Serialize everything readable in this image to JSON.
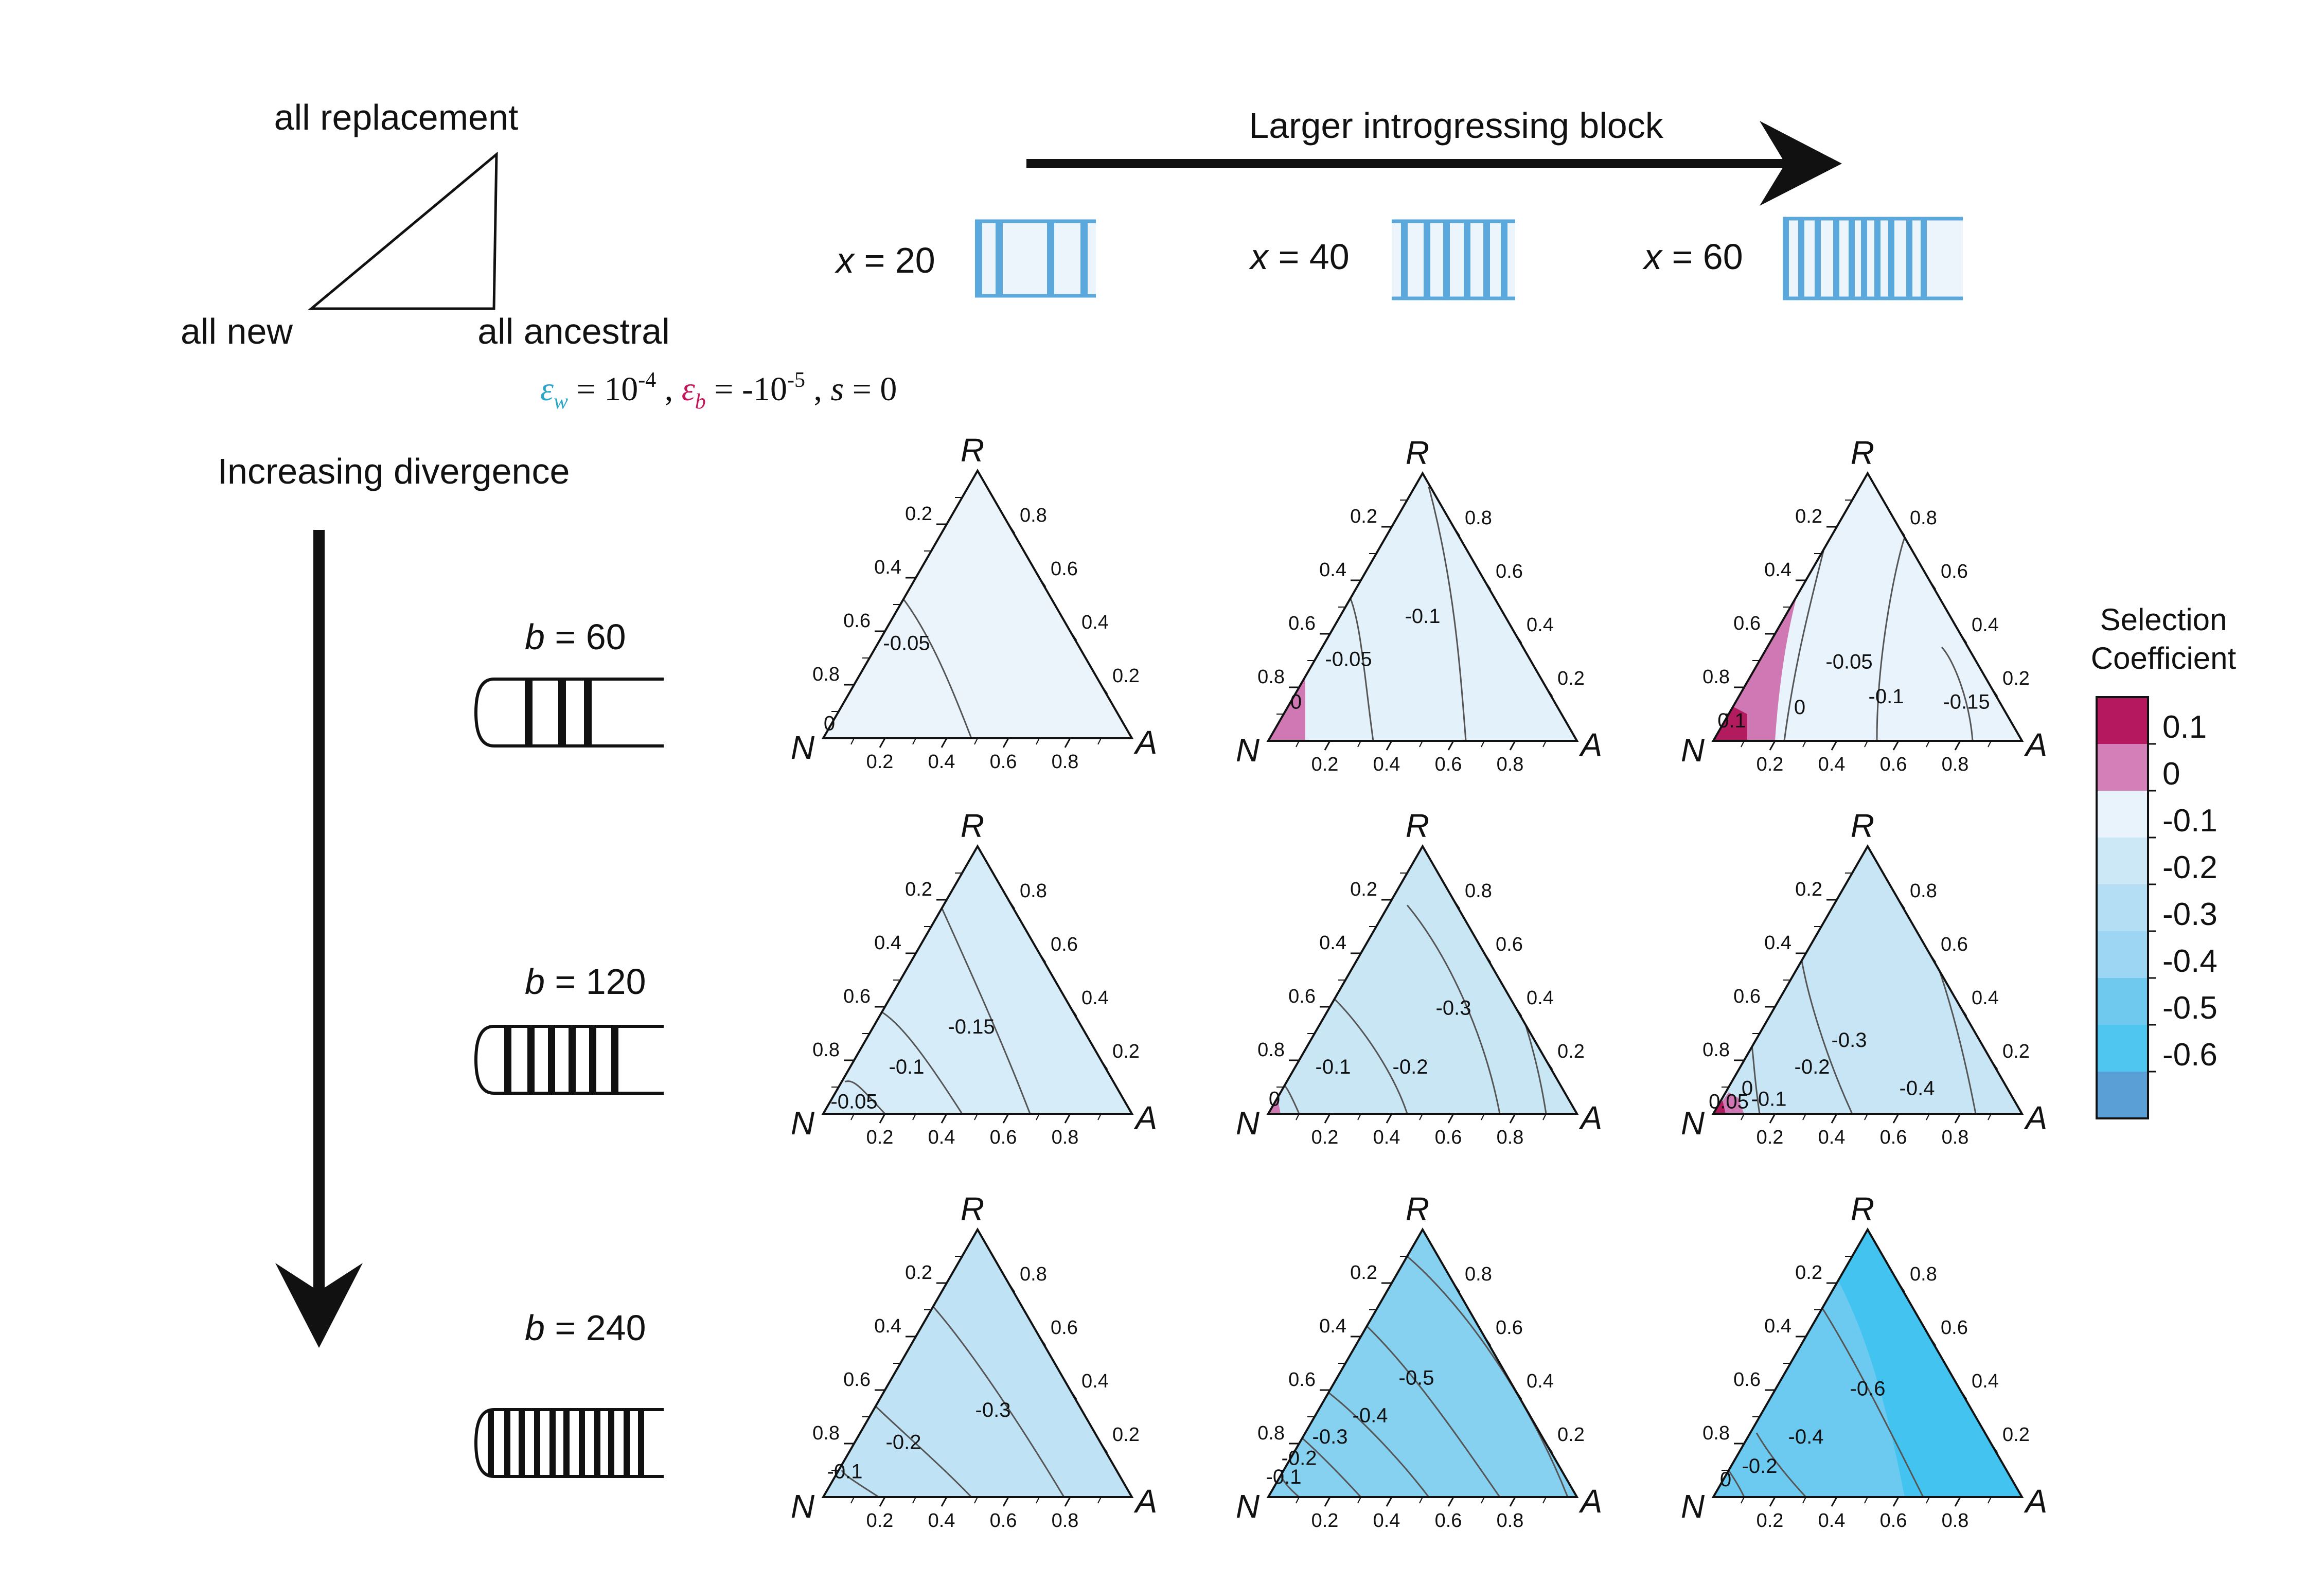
{
  "schematic": {
    "apex_top": "all replacement",
    "apex_left": "all new",
    "apex_right": "all ancestral"
  },
  "params": {
    "eps_w_symbol": "ε",
    "eps_w_sub": "w",
    "eps_w_mid": " = 10",
    "eps_w_exp": "-4",
    "sep1": " , ",
    "eps_b_symbol": "ε",
    "eps_b_sub": "b",
    "eps_b_mid": " = -10",
    "eps_b_exp": "-5",
    "sep2": " , ",
    "s_text": "s",
    "s_val": " = 0",
    "color_w": "#2aa6c9",
    "color_b": "#c2185b"
  },
  "top_arrow_label": "Larger introgressing block",
  "divergence_label": "Increasing divergence",
  "columns": [
    {
      "var": "x",
      "eq": " = 20"
    },
    {
      "var": "x",
      "eq": " = 40"
    },
    {
      "var": "x",
      "eq": " = 60"
    }
  ],
  "rows": [
    {
      "var": "b",
      "eq": " = 60"
    },
    {
      "var": "b",
      "eq": " = 120"
    },
    {
      "var": "b",
      "eq": " = 240"
    }
  ],
  "ternary_axes": {
    "vertex_top": "R",
    "vertex_left": "N",
    "vertex_right": "A",
    "left_ticks": [
      "0.2",
      "0.4",
      "0.6",
      "0.8"
    ],
    "right_ticks": [
      "0.8",
      "0.6",
      "0.4",
      "0.2"
    ],
    "bottom_ticks": [
      "0.2",
      "0.4",
      "0.6",
      "0.8"
    ]
  },
  "colorbar": {
    "title_line1": "Selection",
    "title_line2": "Coefficient",
    "labels": [
      "0.1",
      "0",
      "-0.1",
      "-0.2",
      "-0.3",
      "-0.4",
      "-0.5",
      "-0.6"
    ],
    "colors": [
      "#b5185f",
      "#d47fb8",
      "#e9f3fb",
      "#cce8f6",
      "#b3def4",
      "#9dd6f2",
      "#6fc9ee",
      "#4ec6f0",
      "#5a9fd6"
    ]
  },
  "chart_data": [
    {
      "type": "ternary-contour",
      "x": 20,
      "b": 60,
      "base_color": "#ecf4fb",
      "contour_labels": [
        "-0.05",
        "0"
      ]
    },
    {
      "type": "ternary-contour",
      "x": 40,
      "b": 60,
      "base_color": "#e3f1fa",
      "contour_labels": [
        "-0.1",
        "-0.05",
        "0"
      ]
    },
    {
      "type": "ternary-contour",
      "x": 60,
      "b": 60,
      "base_color": "#e8f3fb",
      "contour_labels": [
        "-0.05",
        "-0.1",
        "-0.15",
        "0",
        "0.1"
      ]
    },
    {
      "type": "ternary-contour",
      "x": 20,
      "b": 120,
      "base_color": "#d6ecf8",
      "contour_labels": [
        "-0.15",
        "-0.1",
        "-0.05"
      ]
    },
    {
      "type": "ternary-contour",
      "x": 40,
      "b": 120,
      "base_color": "#c9e6f5",
      "contour_labels": [
        "-0.3",
        "-0.2",
        "-0.1",
        "0"
      ]
    },
    {
      "type": "ternary-contour",
      "x": 60,
      "b": 120,
      "base_color": "#c7e5f5",
      "contour_labels": [
        "-0.3",
        "-0.2",
        "-0.4",
        "0",
        "-0.1",
        "0.05"
      ]
    },
    {
      "type": "ternary-contour",
      "x": 20,
      "b": 240,
      "base_color": "#bfe2f5",
      "contour_labels": [
        "-0.3",
        "-0.2",
        "-0.1"
      ]
    },
    {
      "type": "ternary-contour",
      "x": 40,
      "b": 240,
      "base_color": "#86d0f0",
      "contour_labels": [
        "-0.5",
        "-0.4",
        "-0.3",
        "-0.2",
        "-0.1"
      ]
    },
    {
      "type": "ternary-contour",
      "x": 60,
      "b": 240,
      "base_color": "#6ccaf0",
      "contour_labels": [
        "-0.6",
        "-0.4",
        "-0.2",
        "0"
      ]
    }
  ]
}
